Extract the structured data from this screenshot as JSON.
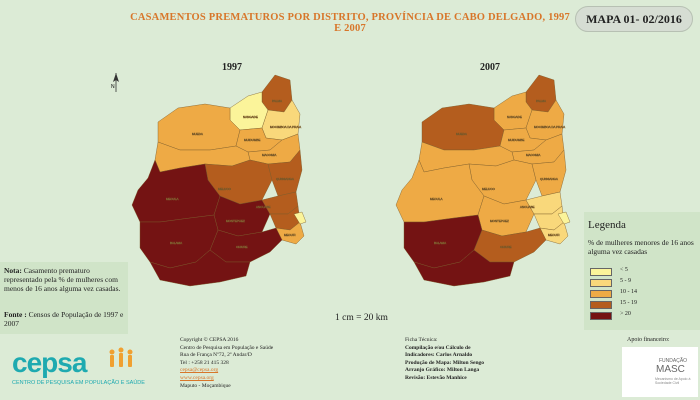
{
  "title": "CASAMENTOS PREMATUROS POR DISTRITO, PROVÍNCIA DE CABO DELGADO, 1997 E 2007",
  "map_number": "MAPA 01- 02/2016",
  "maps": [
    {
      "year": "1997"
    },
    {
      "year": "2007"
    }
  ],
  "north_arrow_label": "N",
  "scale": "1 cm = 20 km",
  "note": {
    "label": "Nota:",
    "text": "Casamento prematuro representado pela % de mulheres com menos de 16 anos alguma vez casadas.",
    "source_label": "Fonte :",
    "source": "Censos de População de 1997 e 2007"
  },
  "legend": {
    "title": "Legenda",
    "description": "% de mulheres menores de 16 anos alguma vez casadas",
    "classes": [
      {
        "label": "< 5",
        "color": "#fbf49a"
      },
      {
        "label": "5 - 9",
        "color": "#f9d87b"
      },
      {
        "label": "10 - 14",
        "color": "#eeaa45"
      },
      {
        "label": "15 - 19",
        "color": "#b45d1e"
      },
      {
        "label": "> 20",
        "color": "#741313"
      }
    ]
  },
  "footer_left": {
    "logo": "cepsa",
    "logo_sub": "CENTRO DE PESQUISA EM POPULAÇÃO E SAÚDE"
  },
  "footer_copyright": {
    "lines": [
      "Copyright © CEPSA 2016",
      "Centro de Pesquisa em População e Saúde",
      "Rua de França Nº72, 2º Andar/D",
      "Tel : +258 21 415 328",
      "cepsa@cepsa.org",
      "www.cepsa.org",
      "Maputo - Moçambique"
    ]
  },
  "footer_tech": {
    "lines": [
      "Ficha Técnica:",
      "Compilação e/ou Cálculo de",
      "Indicadores: Carlos Arnaldo",
      "Produção de Mapa: Milton Sengo",
      "Arranjo Gráfico: Milton Langa",
      "Revisão: Estevão Manhice"
    ]
  },
  "support": {
    "label": "Apoio financeiro:",
    "org_prefix": "FUNDAÇÃO",
    "org": "MASC",
    "org_sub": "Mecanismo de Apoio à Sociedade Civil"
  }
}
